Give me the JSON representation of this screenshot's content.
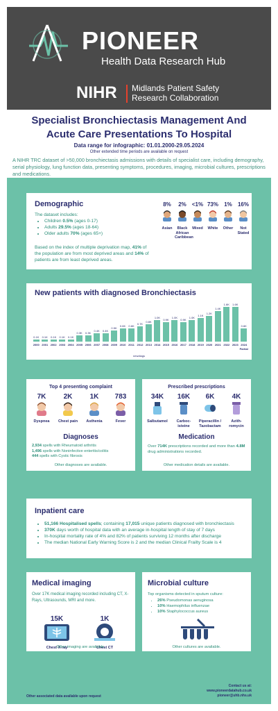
{
  "header": {
    "brand": "PIONEER",
    "brand_sub": "Health Data Research Hub",
    "nihr": "NIHR",
    "nihr_sub1": "Midlands Patient Safety",
    "nihr_sub2": "Research Collaboration"
  },
  "title": {
    "line1": "Specialist Bronchiectasis Management And",
    "line2": "Acute Care Presentations To Hospital",
    "range": "Data range for infographic: 01.01.2000-29.05.2024",
    "range_sub": "Other extended time periods are available on request",
    "intro": "A NIHR TRC dataset of >50,000 bronchiectasis admissions with details of specialist care, including demography, serial physiology, lung function data, presenting symptoms, procedures, imaging, microbial cultures, prescriptions and medications."
  },
  "demographic": {
    "heading": "Demographic",
    "includes": "The dataset includes:",
    "items": [
      {
        "pre": "Children ",
        "val": "0.5%",
        "post": " (ages 0-17)"
      },
      {
        "pre": "Adults ",
        "val": "29.5%",
        "post": " (ages 18-64)"
      },
      {
        "pre": "Older adults ",
        "val": "70%",
        "post": " (ages 65+)"
      }
    ],
    "deprivation_pre": "Based on the index of multiple deprivation map, ",
    "deprivation_b1": "41%",
    "deprivation_mid": " of the population are from most deprived areas and ",
    "deprivation_b2": "14%",
    "deprivation_post": " of patients are from least deprived areas.",
    "ethnicity": [
      {
        "pct": "8%",
        "label": "Asian",
        "skin": "#e0a77a",
        "hair": "#2a2a2a"
      },
      {
        "pct": "2%",
        "label": "Black African Caribbean",
        "skin": "#7a4a2a",
        "hair": "#1a1a1a"
      },
      {
        "pct": "<1%",
        "label": "Mixed",
        "skin": "#c68a5a",
        "hair": "#3a2a1a"
      },
      {
        "pct": "73%",
        "label": "White",
        "skin": "#f2c9a8",
        "hair": "#c0392b"
      },
      {
        "pct": "1%",
        "label": "Other",
        "skin": "#e6b58c",
        "hair": "#5a3a22"
      },
      {
        "pct": "16%",
        "label": "Not Stated",
        "skin": "#f0c6a0",
        "hair": "#7a7a7a"
      }
    ]
  },
  "new_patients": {
    "heading": "New patients with diagnosed Bronchiectasis",
    "xlabel": "newdiags"
  },
  "chart_data": {
    "type": "bar",
    "categories": [
      "2000",
      "2001",
      "2002",
      "2003",
      "2004",
      "2005",
      "2006",
      "2007",
      "2008",
      "2009",
      "2010",
      "2011",
      "2012",
      "2013",
      "2014",
      "2015",
      "2016",
      "2017",
      "2018",
      "2019",
      "2020",
      "2021",
      "2022",
      "2023",
      "2024"
    ],
    "values": [
      0.1,
      0.1,
      0.1,
      0.1,
      0.1,
      0.3,
      0.3,
      0.4,
      0.4,
      0.5,
      0.6,
      0.6,
      0.7,
      0.8,
      1.0,
      0.9,
      1.0,
      0.9,
      1.0,
      1.1,
      1.2,
      1.4,
      1.6,
      1.6,
      0.6
    ],
    "value_labels": [
      "0.1K",
      "0.1K",
      "0.1K",
      "0.1K",
      "0.1K",
      "0.3K",
      "0.3K",
      "0.4K",
      "0.4K",
      "0.5K",
      "0.6K",
      "0.6K",
      "0.7K",
      "0.8K",
      "1.0K",
      "0.9K",
      "1.0K",
      "0.9K",
      "1.0K",
      "1.1K",
      "1.2K",
      "1.4K",
      "1.6K",
      "1.6K",
      "0.6K"
    ],
    "last_note": "Partial",
    "xlabel": "newdiags",
    "ylim": [
      0,
      1.6
    ],
    "color": "#6cc1a8"
  },
  "complaints": {
    "heading": "Top 4 presenting complaint",
    "items": [
      {
        "num": "7K",
        "label": "Dyspnea"
      },
      {
        "num": "2K",
        "label": "Chest pain"
      },
      {
        "num": "1K",
        "label": "Asthenia"
      },
      {
        "num": "783",
        "label": "Fever"
      }
    ],
    "diag_heading": "Diagnoses",
    "diag": [
      {
        "b": "2,934",
        "t": " spells with Rheumatoid arthritis"
      },
      {
        "b": "1,496",
        "t": " spells with Noninfective enteritis/colitis"
      },
      {
        "b": "444",
        "t": " spells with Cystic fibrosis"
      }
    ],
    "other": "Other diagnoses are available."
  },
  "prescriptions": {
    "heading": "Prescribed prescriptions",
    "items": [
      {
        "num": "34K",
        "label": "Salbutamol"
      },
      {
        "num": "16K",
        "label": "Carboc-isteine"
      },
      {
        "num": "6K",
        "label": "Piperacillin / Tazobactam"
      },
      {
        "num": "4K",
        "label": "Azith-romycin"
      }
    ],
    "med_heading": "Medication",
    "med_pre": "Over ",
    "med_b1": "714K",
    "med_mid": " prescriptions recorded and more than ",
    "med_b2": "4.8M",
    "med_post": " drug administrations recorded.",
    "other": "Other medication details are available."
  },
  "inpatient": {
    "heading": "Inpatient care",
    "items": [
      {
        "b": "51,166 Hospitalised spells",
        "t": "; containing ",
        "b2": "17,015",
        "t2": " unique patients diagnosed with bronchiectasis"
      },
      {
        "b": "370K",
        "t": " days worth of hospital data with an average in-hospital length of stay of 7 days",
        "b2": "",
        "t2": ""
      },
      {
        "b": "",
        "t": "In-hospital mortality rate of 4% and 82% of patients surviving 12 months after discharge",
        "b2": "",
        "t2": ""
      },
      {
        "b": "",
        "t": "The median National Early Warning Score is 2 and the median Clinical Frailty Scale is 4",
        "b2": "",
        "t2": ""
      }
    ]
  },
  "imaging": {
    "heading": "Medical imaging",
    "text": "Over 17K medical imaging recorded including CT, X-Rays, Ultrasounds, MRI and more.",
    "items": [
      {
        "num": "15K",
        "label": "Chest X-ray"
      },
      {
        "num": "1K",
        "label": "Chest CT"
      }
    ],
    "other": "Other imaging are available."
  },
  "microbial": {
    "heading": "Microbial culture",
    "text": "Top organisms detected in sputum culture:",
    "items": [
      {
        "b": "26%",
        "t": " Pseudomonas aeruginosa"
      },
      {
        "b": "10%",
        "t": " Haemophilus influenzae"
      },
      {
        "b": "10%",
        "t": " Staphylococcus aureus"
      }
    ],
    "other": "Other cultures are available."
  },
  "footer": {
    "left": "Other associated data available upon request",
    "contact": "Contact us at:",
    "web": "www.pioneerdatahub.co.uk",
    "email": "pioneer@uhb.nhs.uk"
  }
}
